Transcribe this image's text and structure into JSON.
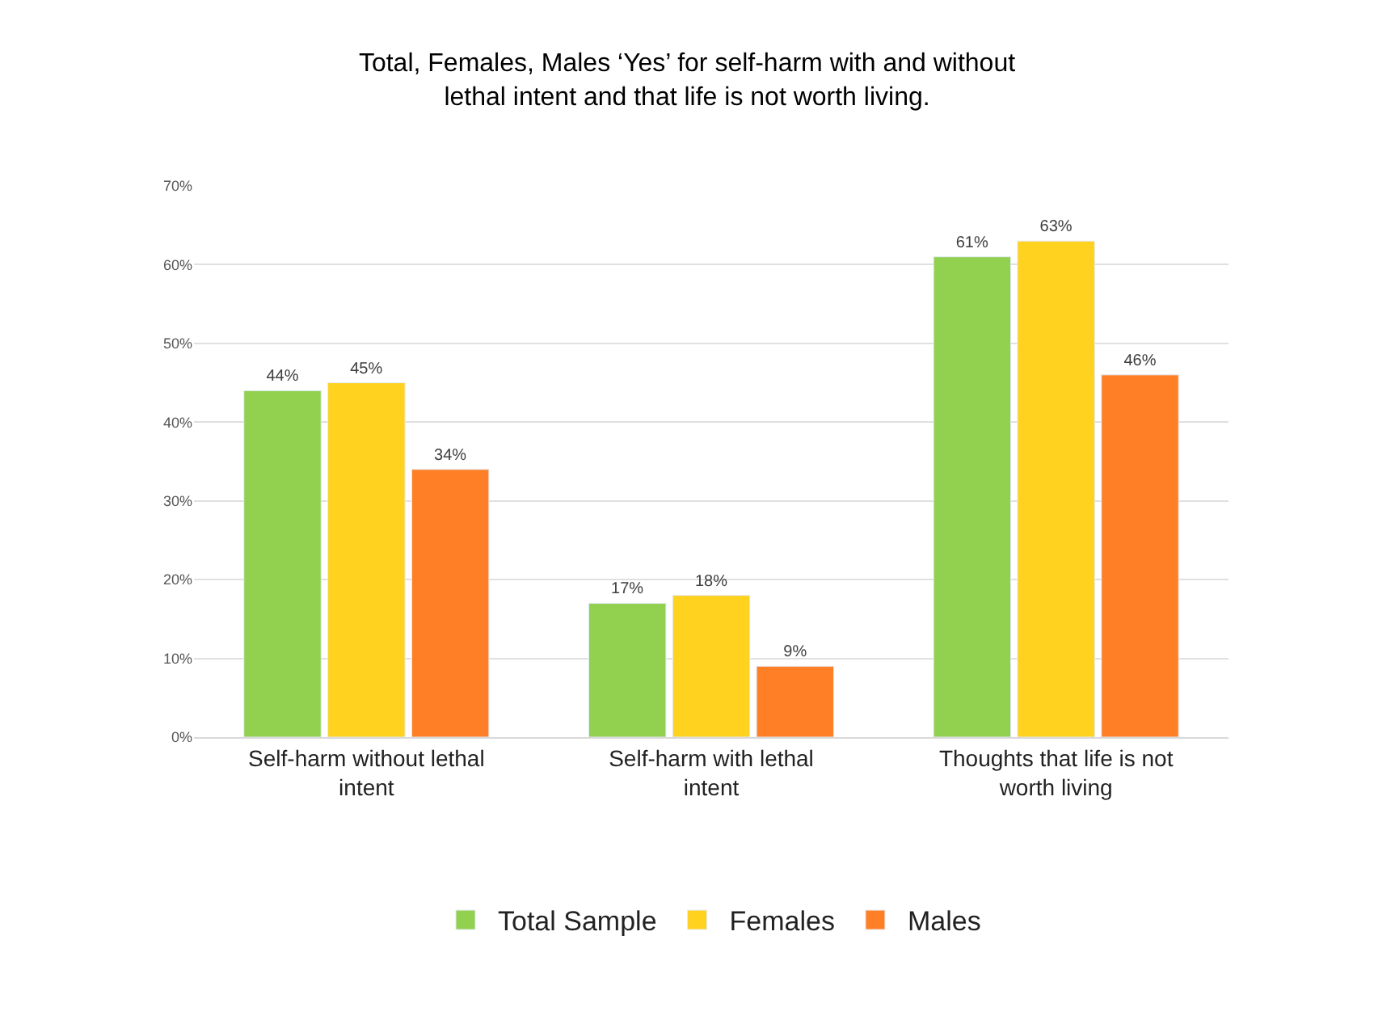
{
  "chart_data": {
    "type": "bar",
    "title": "Total, Females, Males ‘Yes’ for self-harm with and without lethal intent and that life is not worth living.",
    "categories": [
      "Self-harm without lethal intent",
      "Self-harm with lethal intent",
      "Thoughts that life is not worth living"
    ],
    "series": [
      {
        "name": "Total Sample",
        "color": "#92d050",
        "values": [
          44,
          17,
          61
        ],
        "value_labels": [
          "44%",
          "17%",
          "61%"
        ]
      },
      {
        "name": "Females",
        "color": "#ffd21f",
        "values": [
          45,
          18,
          63
        ],
        "value_labels": [
          "45%",
          "18%",
          "63%"
        ]
      },
      {
        "name": "Males",
        "color": "#ff7f27",
        "values": [
          34,
          9,
          46
        ],
        "value_labels": [
          "34%",
          "9%",
          "46%"
        ]
      }
    ],
    "ylim": [
      0,
      70
    ],
    "yticks": [
      {
        "value": 0,
        "label": "0%"
      },
      {
        "value": 10,
        "label": "10%"
      },
      {
        "value": 20,
        "label": "20%"
      },
      {
        "value": 30,
        "label": "30%"
      },
      {
        "value": 40,
        "label": "40%"
      },
      {
        "value": 50,
        "label": "50%"
      },
      {
        "value": 60,
        "label": "60%"
      },
      {
        "value": 70,
        "label": "70%"
      }
    ],
    "grid": "y",
    "legend": "bottom"
  }
}
